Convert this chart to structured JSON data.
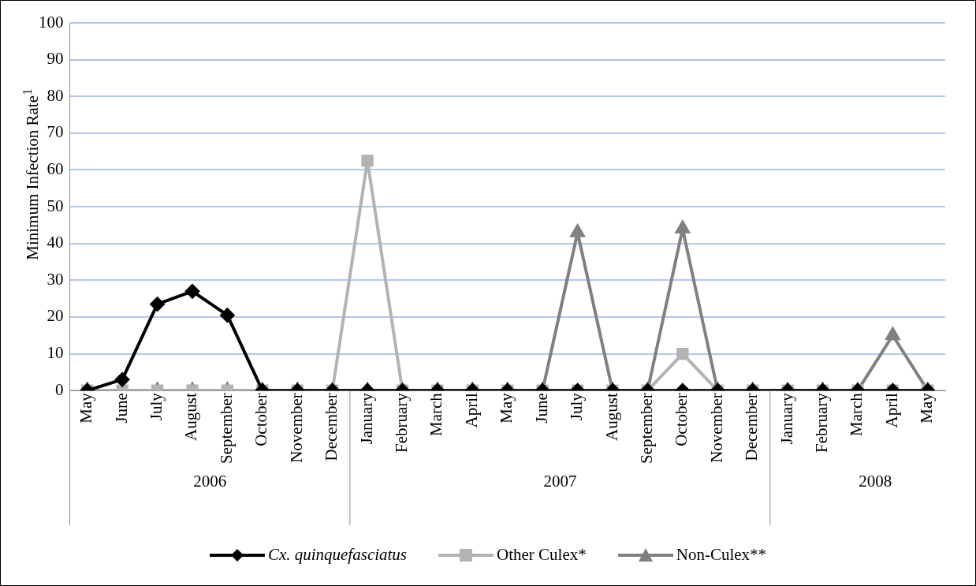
{
  "chart_data": {
    "type": "line",
    "ylabel": "Minimum Infection Rate$^{1}$",
    "categories": [
      "May",
      "June",
      "July",
      "August",
      "September",
      "October",
      "November",
      "December",
      "January",
      "February",
      "March",
      "April",
      "May",
      "June",
      "July",
      "August",
      "September",
      "October",
      "November",
      "December",
      "January",
      "February",
      "March",
      "April",
      "May"
    ],
    "annotations": [
      "2006",
      "2007",
      "2008"
    ],
    "ylim": [
      0,
      100
    ],
    "yticks": [
      0,
      10,
      20,
      30,
      40,
      50,
      60,
      70,
      80,
      90,
      100
    ],
    "grid": "y",
    "legend": "bottom",
    "series": [
      {
        "name": "Cx. quinquefasciatus",
        "color": "#000000",
        "marker": "diamond",
        "values": [
          0,
          3,
          23.5,
          27,
          20.5,
          0,
          0,
          0,
          0,
          0,
          0,
          0,
          0,
          0,
          0,
          0,
          0,
          0,
          0,
          0,
          0,
          0,
          0,
          0,
          0
        ]
      },
      {
        "name": "Other Culex*",
        "color": "#b3b3b3",
        "marker": "square",
        "values": [
          0,
          0,
          0,
          0,
          0,
          0,
          0,
          0,
          62.5,
          0,
          0,
          0,
          0,
          0,
          0,
          0,
          0,
          10,
          0,
          0,
          0,
          0,
          0,
          0,
          0
        ]
      },
      {
        "name": "Non-Culex**",
        "color": "#808080",
        "marker": "triangle",
        "values": [
          0,
          0,
          0,
          0,
          0,
          0,
          0,
          0,
          0,
          0,
          0,
          0,
          0,
          0,
          43,
          0,
          0,
          44,
          0,
          0,
          0,
          0,
          0,
          15,
          0
        ]
      }
    ]
  }
}
